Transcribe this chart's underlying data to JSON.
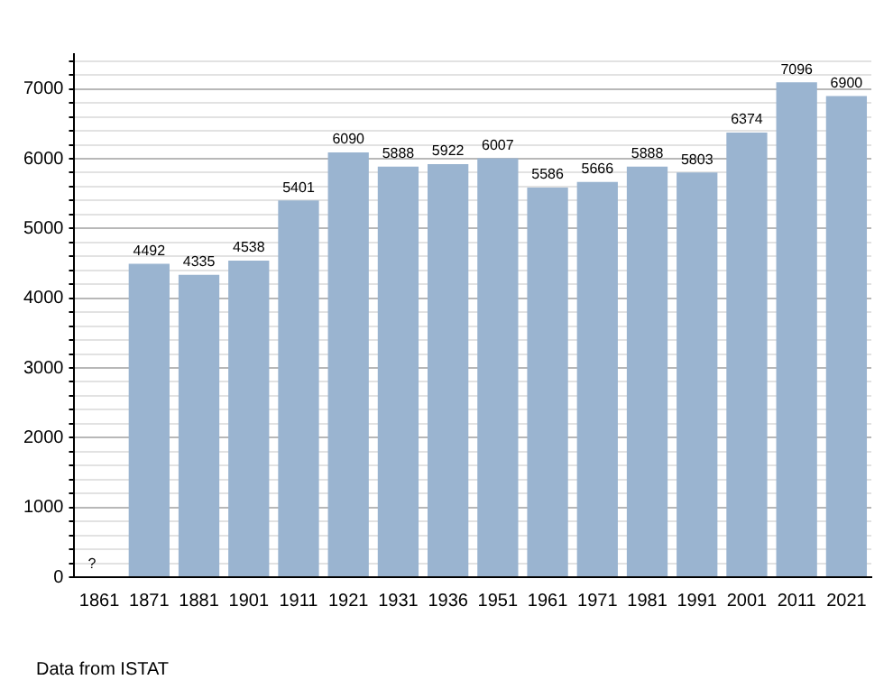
{
  "chart_data": {
    "type": "bar",
    "categories": [
      "1861",
      "1871",
      "1881",
      "1901",
      "1911",
      "1921",
      "1931",
      "1936",
      "1951",
      "1961",
      "1971",
      "1981",
      "1991",
      "2001",
      "2011",
      "2021"
    ],
    "values": [
      null,
      4492,
      4335,
      4538,
      5401,
      6090,
      5888,
      5922,
      6007,
      5586,
      5666,
      5888,
      5803,
      6374,
      7096,
      6900
    ],
    "value_labels": [
      "?",
      "4492",
      "4335",
      "4538",
      "5401",
      "6090",
      "5888",
      "5922",
      "6007",
      "5586",
      "5666",
      "5888",
      "5803",
      "6374",
      "7096",
      "6900"
    ],
    "color": "#9ab4d0",
    "ylim": [
      0,
      7500
    ],
    "yticks": [
      0,
      {
        "value": 200,
        "label": null
      },
      {
        "value": 400,
        "label": null
      },
      {
        "value": 600,
        "label": null
      },
      {
        "value": 800,
        "label": null
      },
      1000,
      {
        "value": 1200,
        "label": null
      },
      {
        "value": 1400,
        "label": null
      },
      {
        "value": 1600,
        "label": null
      },
      {
        "value": 1800,
        "label": null
      },
      2000,
      {
        "value": 2200,
        "label": null
      },
      {
        "value": 2400,
        "label": null
      },
      {
        "value": 2600,
        "label": null
      },
      {
        "value": 2800,
        "label": null
      },
      3000,
      {
        "value": 3200,
        "label": null
      },
      {
        "value": 3400,
        "label": null
      },
      {
        "value": 3600,
        "label": null
      },
      {
        "value": 3800,
        "label": null
      },
      4000,
      {
        "value": 4200,
        "label": null
      },
      {
        "value": 4400,
        "label": null
      },
      {
        "value": 4600,
        "label": null
      },
      {
        "value": 4800,
        "label": null
      },
      5000,
      {
        "value": 5200,
        "label": null
      },
      {
        "value": 5400,
        "label": null
      },
      {
        "value": 5600,
        "label": null
      },
      {
        "value": 5800,
        "label": null
      },
      6000,
      {
        "value": 6200,
        "label": null
      },
      {
        "value": 6400,
        "label": null
      },
      {
        "value": 6600,
        "label": null
      },
      {
        "value": 6800,
        "label": null
      },
      7000,
      {
        "value": 7200,
        "label": null
      },
      {
        "value": 7400,
        "label": null
      }
    ],
    "grid": "y",
    "annotations": [
      "Data from ISTAT"
    ]
  }
}
